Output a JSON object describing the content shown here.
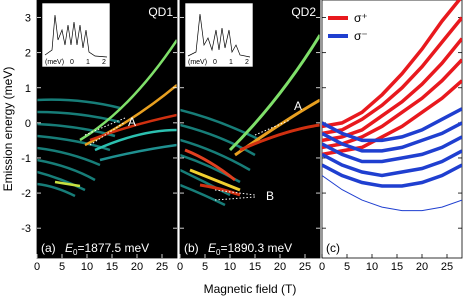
{
  "chart_data": {
    "type": "line",
    "y_label": "Emission energy (meV)",
    "x_label": "Magnetic field (T)",
    "xlim": [
      0,
      28
    ],
    "xticks": [
      0,
      5,
      10,
      15,
      20,
      25
    ],
    "ylim": [
      -3.85,
      3.5
    ],
    "yticks": [
      -3,
      -2,
      -1,
      0,
      1,
      2,
      3
    ],
    "panels": [
      {
        "tag": "(a)",
        "dot": "QD1",
        "E0": {
          "symbol": "E",
          "subscript": "0",
          "text": "=1877.5 meV"
        },
        "annotations": [
          "A"
        ],
        "inset": {
          "unit": "(meV)",
          "ticks": [
            "0",
            "1",
            "2"
          ]
        }
      },
      {
        "tag": "(b)",
        "dot": "QD2",
        "E0": {
          "symbol": "E",
          "subscript": "0",
          "text": "=1890.3 meV"
        },
        "annotations": [
          "A",
          "B"
        ],
        "inset": {
          "unit": "(meV)",
          "ticks": [
            "0",
            "1",
            "2"
          ]
        }
      },
      {
        "tag": "(c)"
      }
    ],
    "x": [
      0,
      4,
      8,
      12,
      16,
      20,
      24,
      28
    ],
    "series": [
      {
        "name": "σ⁺",
        "color": "#e8191e",
        "curves": [
          [
            -0.1,
            0.0,
            0.3,
            0.8,
            1.4,
            2.1,
            2.9,
            3.6
          ],
          [
            -0.3,
            -0.2,
            0.1,
            0.5,
            1.0,
            1.6,
            2.3,
            3.0
          ],
          [
            -0.5,
            -0.4,
            -0.2,
            0.2,
            0.6,
            1.1,
            1.7,
            2.4
          ],
          [
            -0.7,
            -0.6,
            -0.4,
            -0.1,
            0.3,
            0.7,
            1.2,
            1.8
          ],
          [
            -0.9,
            -0.8,
            -0.7,
            -0.4,
            -0.1,
            0.3,
            0.7,
            1.2
          ]
        ]
      },
      {
        "name": "σ⁻",
        "color": "#1f3fd0",
        "curves": [
          [
            0.0,
            -0.3,
            -0.5,
            -0.5,
            -0.4,
            -0.2,
            0.1,
            0.4
          ],
          [
            -0.3,
            -0.6,
            -0.8,
            -0.8,
            -0.7,
            -0.5,
            -0.3,
            0.0
          ],
          [
            -0.6,
            -0.9,
            -1.1,
            -1.1,
            -1.0,
            -0.9,
            -0.7,
            -0.4
          ],
          [
            -0.9,
            -1.2,
            -1.4,
            -1.5,
            -1.4,
            -1.3,
            -1.1,
            -0.8
          ],
          [
            -1.2,
            -1.5,
            -1.7,
            -1.8,
            -1.8,
            -1.7,
            -1.5,
            -1.2
          ],
          [
            -1.5,
            -1.9,
            -2.2,
            -2.4,
            -2.5,
            -2.5,
            -2.4,
            -2.2
          ]
        ]
      }
    ]
  }
}
